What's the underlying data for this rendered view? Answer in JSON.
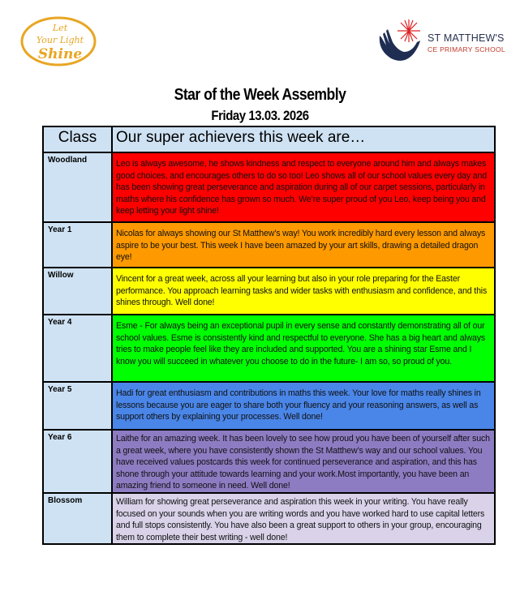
{
  "logos": {
    "left_text": "Let Your Light Shine",
    "school_name": "ST MATTHEW'S",
    "school_subtitle": "CE PRIMARY SCHOOL"
  },
  "header": {
    "title": "Star of the Week Assembly",
    "date": "Friday 13.03. 2026"
  },
  "table": {
    "columns": [
      "Class",
      "Our super achievers this week are…"
    ],
    "rows": [
      {
        "class": "Woodland",
        "color": "#ff0000",
        "text": " Leo is always awesome, he shows kindness and respect to everyone around him and always makes good choices, and encourages others to do so too! Leo shows all of our school values every day and has been showing great perseverance and aspiration during all of our carpet sessions, particularly in maths where his confidence has grown so much. We’re super proud of you Leo, keep being you and keep letting your light shine!"
      },
      {
        "class": "Year 1",
        "color": "#ff9900",
        "text": "Nicolas for always showing our St Matthew’s way! You work incredibly hard every lesson and always aspire to be your best. This week I have been amazed by your art skills, drawing a detailed dragon eye!"
      },
      {
        "class": "Willow",
        "color": "#ffff00",
        "text": "Vincent for a great week, across all your learning but also in your role preparing for the Easter performance. You approach learning tasks and wider tasks with enthusiasm and confidence, and this shines through. Well done!"
      },
      {
        "class": "Year 4",
        "color": "#00ff00",
        "text": "Esme - For always being an exceptional pupil in every sense and constantly demonstrating all of our school values. Esme is consistently kind and respectful to everyone. She has a big heart and always tries to make people feel like they are included and supported. You are a shining star Esme and I know you will succeed in whatever you choose to do in the future- I am so, so proud of you."
      },
      {
        "class": "Year 5",
        "color": "#4a86e8",
        "text": "Hadi for great enthusiasm and contributions in maths this week. Your love for maths really shines in lessons because you are eager to share both your fluency and your reasoning answers, as well as support others by explaining your processes. Well done!"
      },
      {
        "class": "Year 6",
        "color": "#8e7cc3",
        "text": "Laithe for an amazing week. It has been lovely to see how proud you have been of yourself after such a great week, where you have consistently shown the St Matthew’s way and our school values. You have received values postcards this week for continued perseverance and aspiration, and this has shone through your attitude towards learning and your work.Most importantly, you have been an amazing friend to someone in need.  Well done!"
      },
      {
        "class": "Blossom",
        "color": "#d9d2e9",
        "text": "William for showing great perseverance and aspiration this week in your writing. You have really focused on your sounds when you are writing words and you have worked hard to use capital letters and full stops consistently. You have also been a great support to others in your group, encouraging them to complete their best writing - well done!"
      }
    ]
  }
}
